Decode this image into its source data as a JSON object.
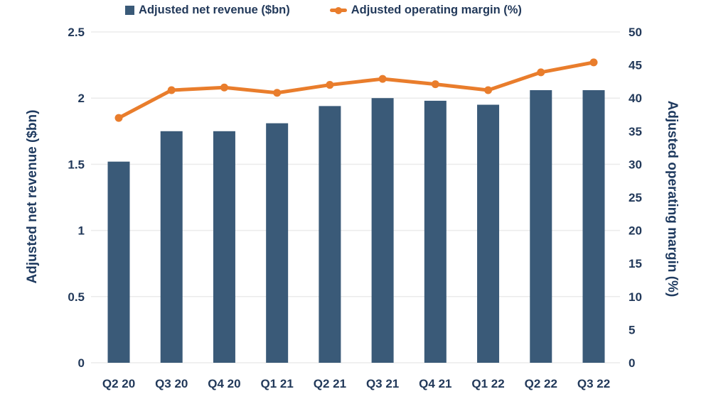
{
  "legend": {
    "items": [
      {
        "label": "Adjusted net revenue ($bn)",
        "marker": "square-icon",
        "color": "#3a5a78"
      },
      {
        "label": "Adjusted operating margin (%)",
        "marker": "line-dot-icon",
        "color": "#e97d2c"
      }
    ]
  },
  "colors": {
    "bar": "#3a5a78",
    "line": "#e97d2c",
    "text": "#22395a",
    "grid": "#ebebeb"
  },
  "chart_data": {
    "type": "bar+line",
    "categories": [
      "Q2 20",
      "Q3 20",
      "Q4 20",
      "Q1 21",
      "Q2 21",
      "Q3 21",
      "Q4 21",
      "Q1 22",
      "Q2 22",
      "Q3 22"
    ],
    "series": [
      {
        "name": "Adjusted net revenue ($bn)",
        "type": "bar",
        "axis": "left",
        "color": "#3a5a78",
        "values": [
          1.52,
          1.75,
          1.75,
          1.81,
          1.94,
          2.0,
          1.98,
          1.95,
          2.06,
          2.06
        ]
      },
      {
        "name": "Adjusted operating margin (%)",
        "type": "line",
        "axis": "right",
        "color": "#e97d2c",
        "values": [
          37.0,
          41.2,
          41.6,
          40.8,
          42.0,
          42.9,
          42.1,
          41.2,
          43.9,
          45.4
        ]
      }
    ],
    "left_axis": {
      "title": "Adjusted net revenue ($bn)",
      "min": 0,
      "max": 2.5,
      "tick_step": 0.5,
      "tick_labels": [
        "2.5",
        "2",
        "1.5",
        "1",
        "0.5",
        "0"
      ]
    },
    "right_axis": {
      "title": "Adjusted operating margin (%)",
      "min": 0,
      "max": 50,
      "tick_step": 5,
      "tick_labels": [
        "50",
        "45",
        "40",
        "35",
        "30",
        "25",
        "20",
        "15",
        "10",
        "5",
        "0"
      ]
    },
    "grid": true,
    "legend_position": "top"
  }
}
